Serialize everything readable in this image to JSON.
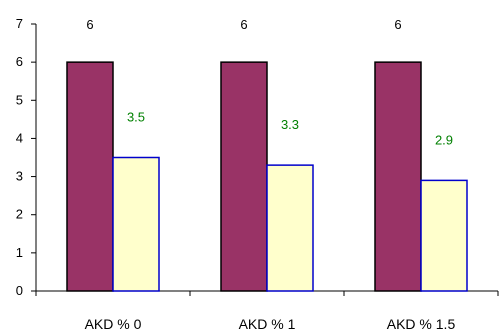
{
  "chart_data": {
    "type": "bar",
    "categories": [
      "AKD % 0",
      "AKD % 1",
      "AKD % 1.5"
    ],
    "series": [
      {
        "values": [
          6,
          6,
          6
        ],
        "color": "#993366",
        "stroke": "#000000",
        "label_color": "#000000"
      },
      {
        "values": [
          3.5,
          3.3,
          2.9
        ],
        "color": "#FFFFCC",
        "stroke": "#0000CC",
        "label_color": "#008000"
      }
    ],
    "data_labels": [
      [
        "6",
        "6",
        "6"
      ],
      [
        "3.5",
        "3.3",
        "2.9"
      ]
    ],
    "yticks": [
      "0",
      "1",
      "2",
      "3",
      "4",
      "5",
      "6",
      "7"
    ],
    "ylim": [
      0,
      7
    ],
    "grid": false,
    "legend": "none",
    "title": "",
    "xlabel": "",
    "ylabel": ""
  }
}
